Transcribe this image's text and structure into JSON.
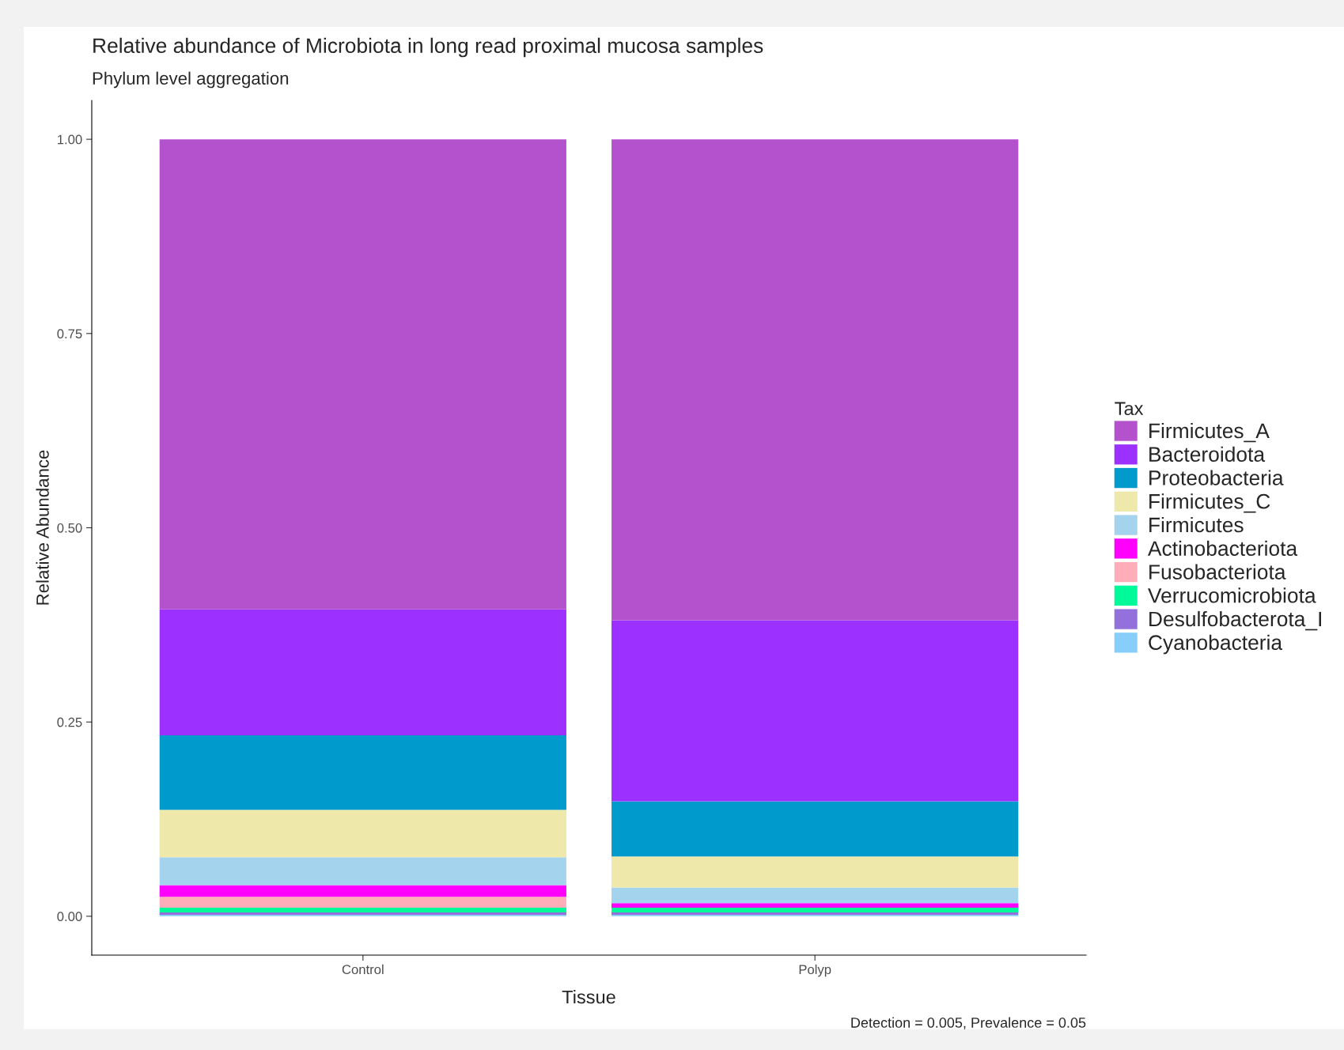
{
  "chart_data": {
    "type": "bar",
    "title": "Relative abundance of Microbiota in long read proximal mucosa samples",
    "subtitle": "Phylum level aggregation",
    "xlabel": "Tissue",
    "ylabel": "Relative Abundance",
    "legend_title": "Tax",
    "categories": [
      "Control",
      "Polyp"
    ],
    "stacked": true,
    "ylim": [
      -0.05,
      1.05
    ],
    "yticks": [
      {
        "value": 0,
        "label": "0.00"
      },
      {
        "value": 0.25,
        "label": "0.25"
      },
      {
        "value": 0.5,
        "label": "0.50"
      },
      {
        "value": 0.75,
        "label": "0.75"
      },
      {
        "value": 1,
        "label": "1.00"
      }
    ],
    "grid": false,
    "legend": "right",
    "series": [
      {
        "name": "Cyanobacteria",
        "color": "#87cefa",
        "values": [
          0.002,
          0.002
        ]
      },
      {
        "name": "Desulfobacterota_I",
        "color": "#9370db",
        "values": [
          0.003,
          0.003
        ]
      },
      {
        "name": "Verrucomicrobiota",
        "color": "#00fa9a",
        "values": [
          0.006,
          0.006
        ]
      },
      {
        "name": "Fusobacteriota",
        "color": "#ffaeb9",
        "values": [
          0.014,
          0.0
        ]
      },
      {
        "name": "Actinobacteriota",
        "color": "#ff00ff",
        "values": [
          0.015,
          0.006
        ]
      },
      {
        "name": "Firmicutes",
        "color": "#a4d3ee",
        "values": [
          0.036,
          0.02
        ]
      },
      {
        "name": "Firmicutes_C",
        "color": "#eee8aa",
        "values": [
          0.061,
          0.04
        ]
      },
      {
        "name": "Proteobacteria",
        "color": "#009acd",
        "values": [
          0.096,
          0.071
        ]
      },
      {
        "name": "Bacteroidota",
        "color": "#9b30ff",
        "values": [
          0.162,
          0.233
        ]
      },
      {
        "name": "Firmicutes_A",
        "color": "#b452cd",
        "values": [
          0.605,
          0.619
        ]
      }
    ],
    "annotations": [
      "Detection = 0.005, Prevalence = 0.05"
    ]
  }
}
